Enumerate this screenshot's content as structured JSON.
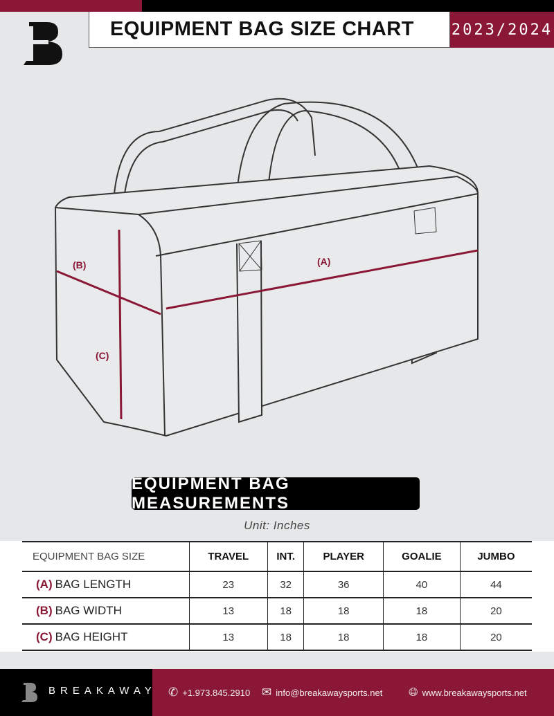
{
  "header": {
    "title": "EQUIPMENT BAG SIZE CHART",
    "season": "2023/2024",
    "logo": "B"
  },
  "diagram": {
    "label_a": "(A)",
    "label_b": "(B)",
    "label_c": "(C)"
  },
  "section_title": "EQUIPMENT BAG MEASUREMENTS",
  "unit": "Unit: Inches",
  "table": {
    "corner": "EQUIPMENT BAG SIZE",
    "columns": [
      "TRAVEL",
      "INT.",
      "PLAYER",
      "GOALIE",
      "JUMBO"
    ],
    "rows": [
      {
        "letter": "(A)",
        "label": "BAG LENGTH",
        "values": [
          "23",
          "32",
          "36",
          "40",
          "44"
        ]
      },
      {
        "letter": "(B)",
        "label": "BAG WIDTH",
        "values": [
          "13",
          "18",
          "18",
          "18",
          "20"
        ]
      },
      {
        "letter": "(C)",
        "label": "BAG HEIGHT",
        "values": [
          "13",
          "18",
          "18",
          "18",
          "20"
        ]
      }
    ]
  },
  "footer": {
    "brand": "BREAKAWAY",
    "phone": "+1.973.845.2910",
    "email": "info@breakawaysports.net",
    "website": "www.breakawaysports.net"
  },
  "colors": {
    "accent": "#8a1736",
    "background": "#e6e7e8"
  }
}
